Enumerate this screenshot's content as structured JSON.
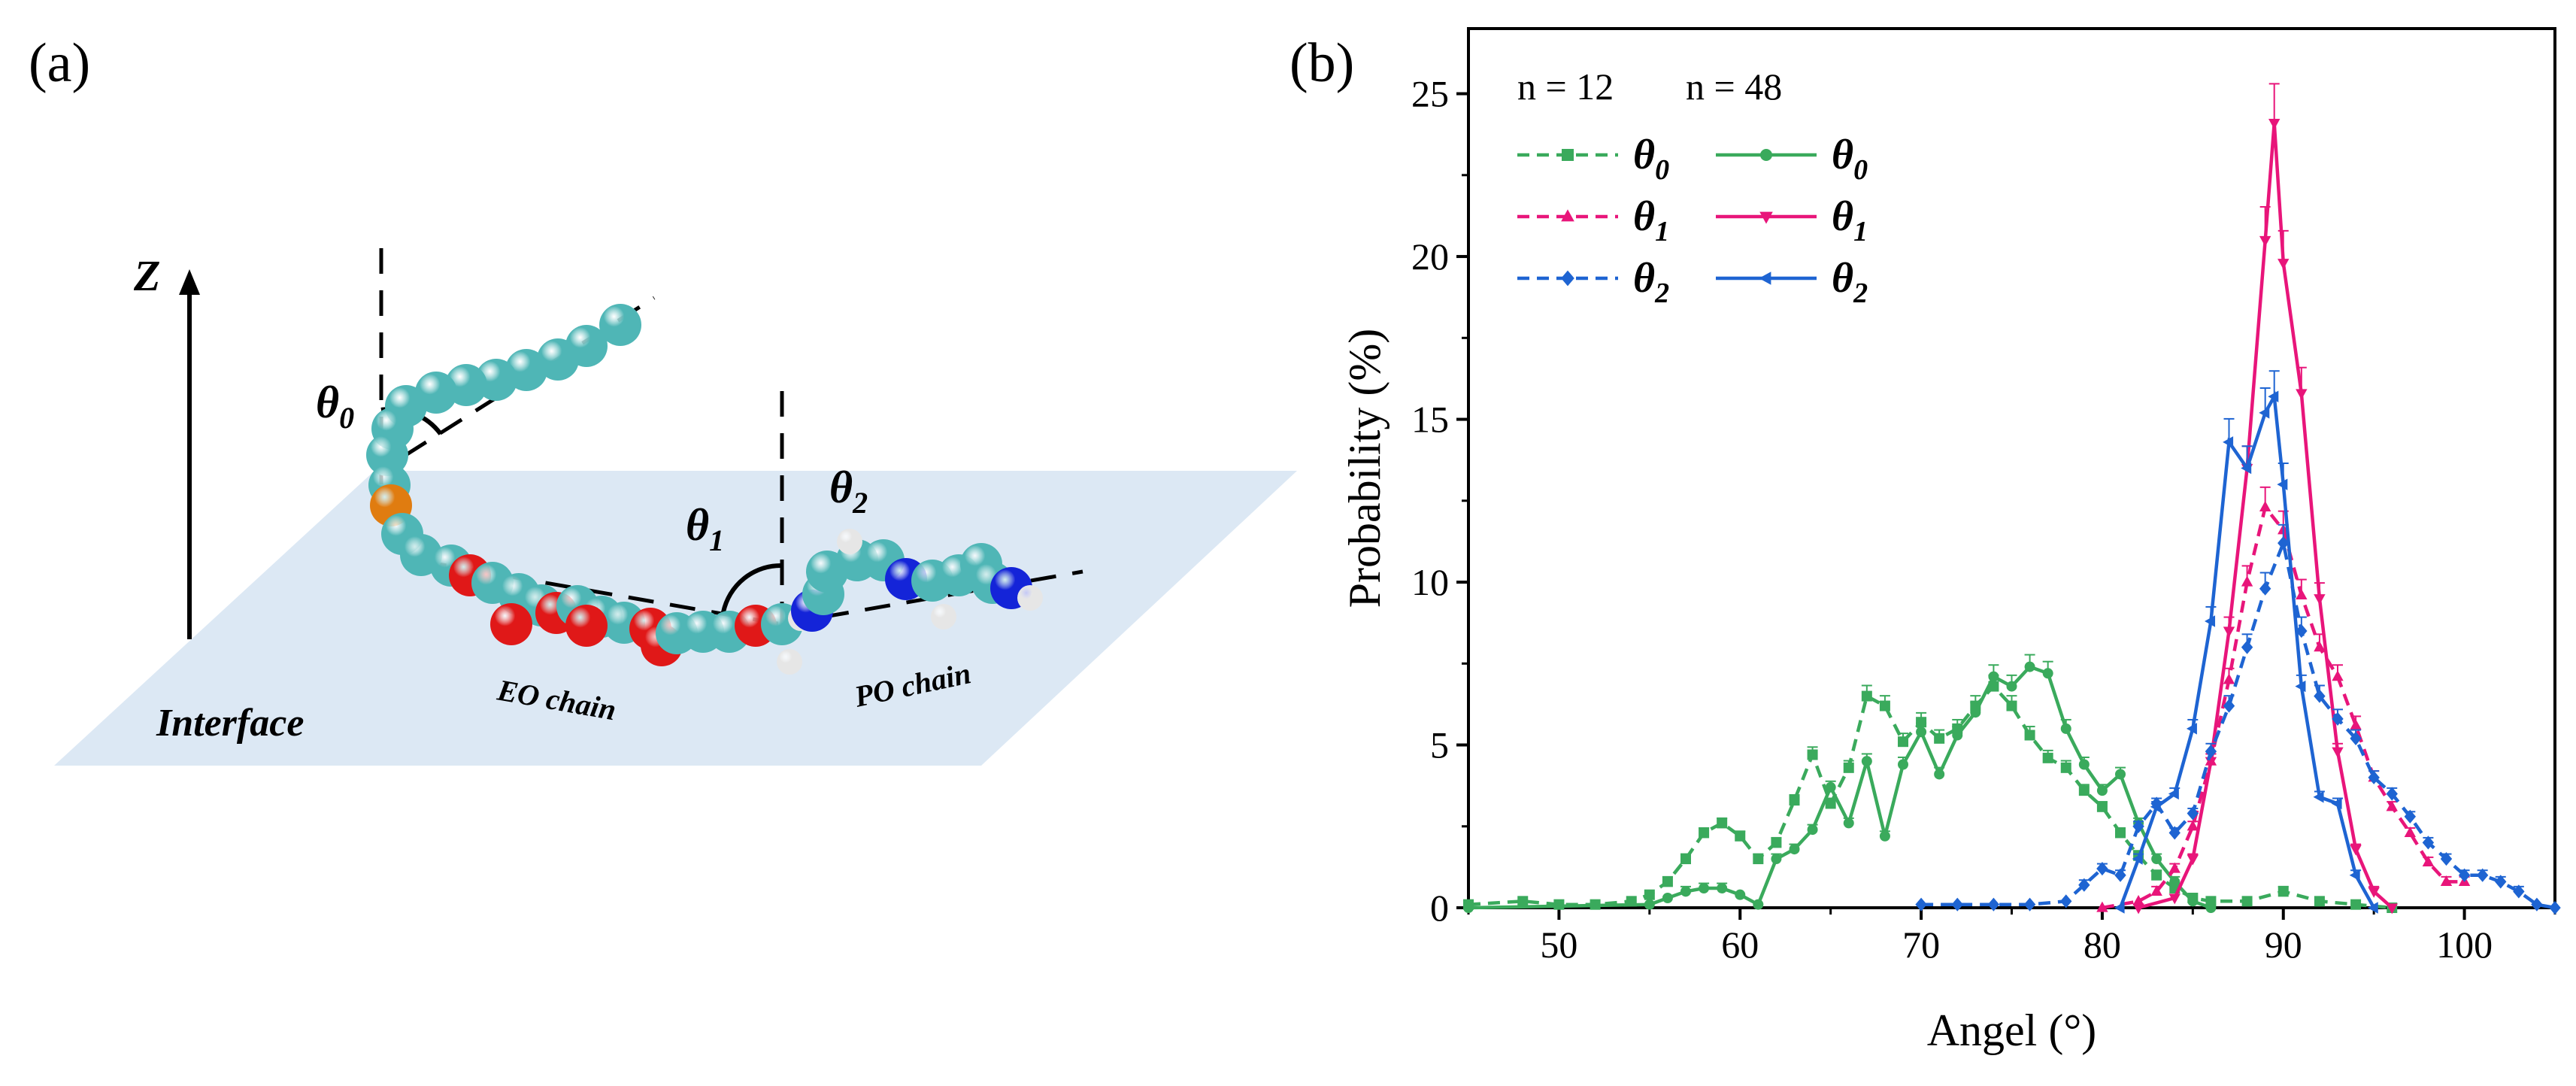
{
  "panel_a": {
    "label": "(a)",
    "z_label": "Z",
    "theta0": {
      "base": "θ",
      "sub": "0"
    },
    "theta1": {
      "base": "θ",
      "sub": "1"
    },
    "theta2": {
      "base": "θ",
      "sub": "2"
    },
    "eo_label": "EO chain",
    "po_label": "PO chain",
    "interface_label": "Interface",
    "colors": {
      "plane": "#dce8f4",
      "carbon": "#4fb6b6",
      "oxygen": "#e01818",
      "nitrogen": "#1424d8",
      "hydrogen": "#e6e6e6",
      "special": "#e07c10"
    }
  },
  "panel_b": {
    "label": "(b)"
  },
  "chart_data": {
    "type": "line",
    "xlabel": "Angel (°)",
    "ylabel": "Probability (%)",
    "xlim": [
      45,
      105
    ],
    "ylim": [
      0,
      27
    ],
    "xticks": [
      50,
      60,
      70,
      80,
      90,
      100
    ],
    "yticks": [
      0,
      5,
      10,
      15,
      20,
      25
    ],
    "grid": false,
    "legend": {
      "placement": "top-left",
      "headers": [
        "n = 12",
        "n = 48"
      ]
    },
    "series": [
      {
        "name": "θ0",
        "sub": "0",
        "n": "n = 12",
        "style": "dashed",
        "marker": "square",
        "color": "#3aaa5c",
        "x": [
          45,
          48,
          50,
          52,
          54,
          55,
          56,
          57,
          58,
          59,
          60,
          61,
          62,
          63,
          64,
          65,
          66,
          67,
          68,
          69,
          70,
          71,
          72,
          73,
          74,
          75,
          76,
          77,
          78,
          79,
          80,
          81,
          82,
          83,
          84,
          85,
          86,
          88,
          90,
          92,
          94,
          96
        ],
        "y": [
          0.1,
          0.2,
          0.1,
          0.1,
          0.2,
          0.4,
          0.8,
          1.5,
          2.3,
          2.6,
          2.2,
          1.5,
          2.0,
          3.3,
          4.7,
          3.2,
          4.3,
          6.5,
          6.2,
          5.1,
          5.7,
          5.2,
          5.5,
          6.2,
          6.8,
          6.2,
          5.3,
          4.6,
          4.3,
          3.6,
          3.1,
          2.3,
          1.6,
          1.0,
          0.6,
          0.3,
          0.2,
          0.2,
          0.5,
          0.2,
          0.1,
          0.0
        ]
      },
      {
        "name": "θ0",
        "sub": "0",
        "n": "n = 48",
        "style": "solid",
        "marker": "circle",
        "color": "#3aaa5c",
        "x": [
          45,
          55,
          56,
          57,
          58,
          59,
          60,
          61,
          62,
          63,
          64,
          65,
          66,
          67,
          68,
          69,
          70,
          71,
          72,
          73,
          74,
          75,
          76,
          77,
          78,
          79,
          80,
          81,
          82,
          83,
          84,
          85,
          86
        ],
        "y": [
          0.0,
          0.1,
          0.3,
          0.5,
          0.6,
          0.6,
          0.4,
          0.1,
          1.5,
          1.8,
          2.4,
          3.7,
          2.6,
          4.5,
          2.2,
          4.4,
          5.4,
          4.1,
          5.3,
          6.0,
          7.1,
          6.8,
          7.4,
          7.2,
          5.5,
          4.4,
          3.6,
          4.1,
          2.6,
          1.5,
          0.8,
          0.2,
          0.0
        ]
      },
      {
        "name": "θ1",
        "sub": "1",
        "n": "n = 12",
        "style": "dashed",
        "marker": "triangle-up",
        "color": "#e8157a",
        "x": [
          80,
          82,
          83,
          84,
          85,
          86,
          87,
          88,
          89,
          90,
          91,
          92,
          93,
          94,
          95,
          96,
          97,
          98,
          99,
          100
        ],
        "y": [
          0.0,
          0.2,
          0.5,
          1.2,
          2.5,
          4.5,
          7.0,
          10.0,
          12.3,
          11.6,
          9.6,
          8.0,
          7.1,
          5.6,
          4.0,
          3.1,
          2.3,
          1.4,
          0.8,
          0.8
        ]
      },
      {
        "name": "θ1",
        "sub": "1",
        "n": "n = 48",
        "style": "solid",
        "marker": "triangle-down",
        "color": "#e8157a",
        "x": [
          82,
          84,
          85,
          86,
          87,
          88,
          89,
          89.5,
          90,
          91,
          92,
          93,
          94,
          95,
          96
        ],
        "y": [
          0.0,
          0.3,
          1.5,
          4.5,
          8.5,
          13.5,
          20.5,
          24.1,
          19.8,
          15.8,
          9.5,
          4.8,
          1.8,
          0.5,
          0.0
        ]
      },
      {
        "name": "θ2",
        "sub": "2",
        "n": "n = 12",
        "style": "dashed",
        "marker": "diamond",
        "color": "#1e64d2",
        "x": [
          70,
          72,
          74,
          76,
          78,
          79,
          80,
          81,
          82,
          83,
          84,
          85,
          86,
          87,
          88,
          89,
          90,
          91,
          92,
          93,
          94,
          95,
          96,
          97,
          98,
          99,
          100,
          101,
          102,
          103,
          104,
          105
        ],
        "y": [
          0.1,
          0.1,
          0.1,
          0.1,
          0.2,
          0.7,
          1.2,
          1.0,
          2.5,
          3.2,
          2.3,
          2.9,
          4.8,
          6.2,
          8.0,
          9.8,
          11.2,
          8.5,
          6.5,
          5.8,
          5.2,
          4.0,
          3.5,
          2.8,
          2.0,
          1.5,
          1.0,
          1.0,
          0.8,
          0.5,
          0.1,
          0.0
        ]
      },
      {
        "name": "θ2",
        "sub": "2",
        "n": "n = 48",
        "style": "solid",
        "marker": "triangle-left",
        "color": "#1e64d2",
        "x": [
          81,
          82,
          83,
          84,
          85,
          86,
          87,
          88,
          89,
          89.5,
          90,
          91,
          92,
          93,
          94,
          95
        ],
        "y": [
          0.0,
          1.5,
          3.1,
          3.5,
          5.5,
          8.8,
          14.3,
          13.5,
          15.2,
          15.7,
          13.0,
          6.8,
          3.4,
          3.2,
          1.0,
          0.0
        ]
      }
    ]
  }
}
